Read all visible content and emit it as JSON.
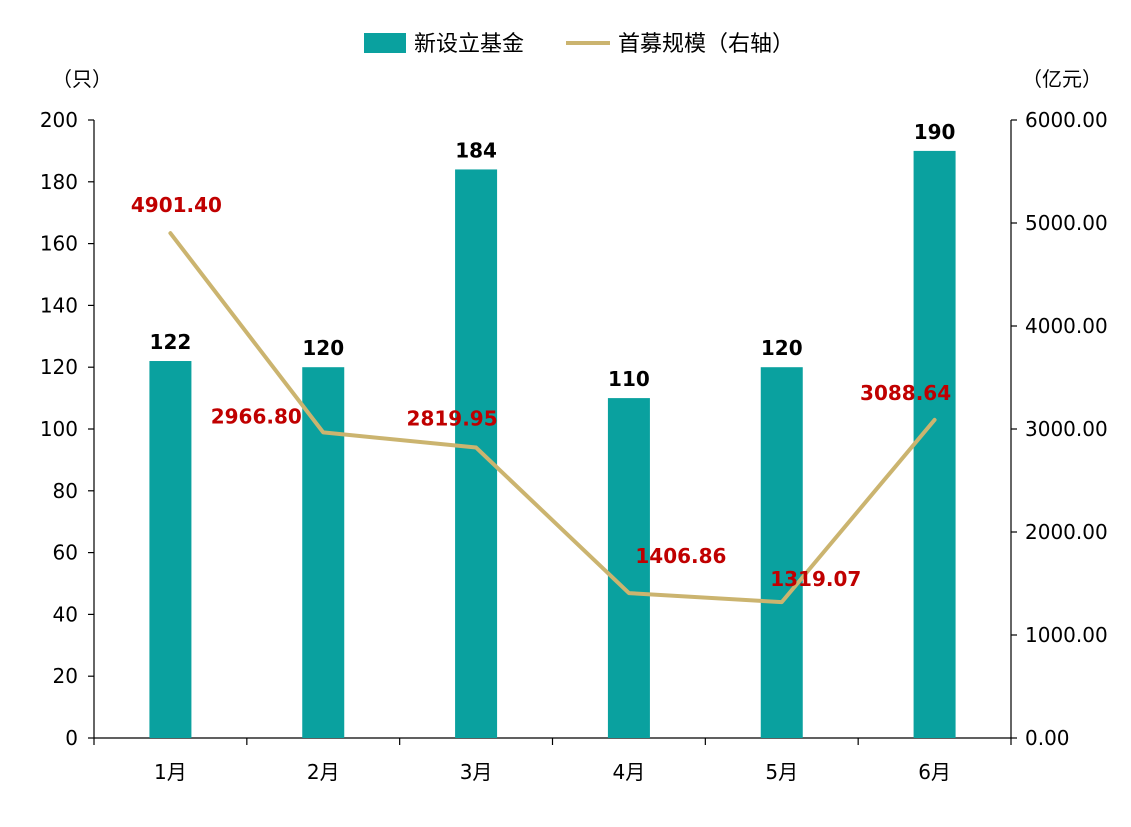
{
  "chart_data": {
    "type": "bar+line",
    "categories": [
      "1月",
      "2月",
      "3月",
      "4月",
      "5月",
      "6月"
    ],
    "series": [
      {
        "name": "新设立基金",
        "type": "bar",
        "axis": "left",
        "values": [
          122,
          120,
          184,
          110,
          120,
          190
        ],
        "labels": [
          "122",
          "120",
          "184",
          "110",
          "120",
          "190"
        ]
      },
      {
        "name": "首募规模（右轴）",
        "type": "line",
        "axis": "right",
        "values": [
          4901.4,
          2966.8,
          2819.95,
          1406.86,
          1319.07,
          3088.64
        ],
        "labels": [
          "4901.40",
          "2966.80",
          "2819.95",
          "1406.86",
          "1319.07",
          "3088.64"
        ]
      }
    ],
    "left_axis": {
      "unit": "（只）",
      "range": [
        0,
        200
      ],
      "ticks": [
        "0",
        "20",
        "40",
        "60",
        "80",
        "100",
        "120",
        "140",
        "160",
        "180",
        "200"
      ]
    },
    "right_axis": {
      "unit": "（亿元）",
      "range": [
        0,
        6000
      ],
      "ticks": [
        "0.00",
        "1000.00",
        "2000.00",
        "3000.00",
        "4000.00",
        "5000.00",
        "6000.00"
      ]
    },
    "legend_position": "top-center",
    "grid": false,
    "colors": {
      "bar": "#0aa19f",
      "line": "#cbb46f",
      "line_label": "#c00000"
    }
  }
}
